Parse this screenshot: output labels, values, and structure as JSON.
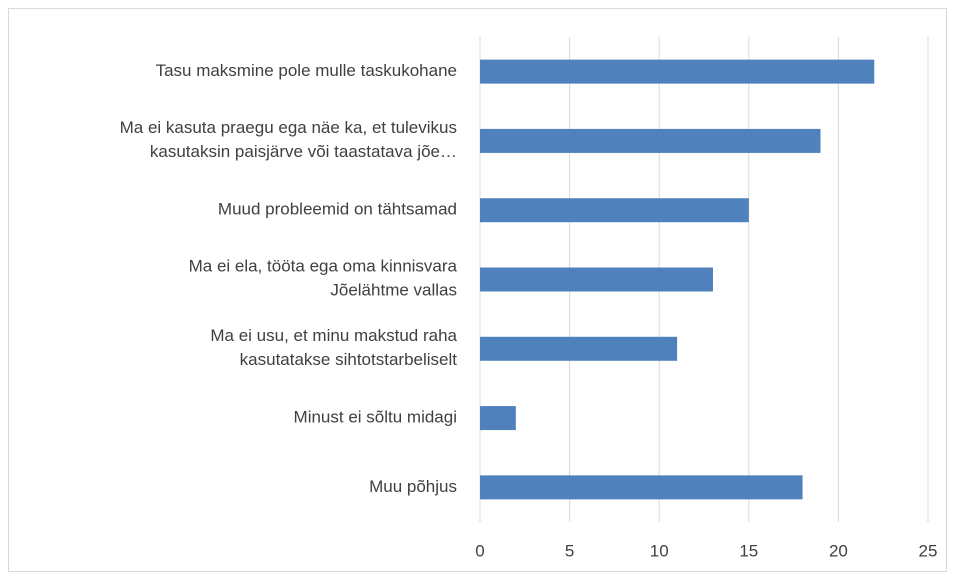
{
  "chart_data": {
    "type": "bar",
    "orientation": "horizontal",
    "categories": [
      "Tasu maksmine pole mulle taskukohane",
      "Ma ei kasuta praegu ega näe ka, et tulevikus\nkasutaksin paisjärve või taastatava jõe…",
      "Muud probleemid on tähtsamad",
      "Ma ei ela, tööta ega oma kinnisvara\nJõelähtme vallas",
      "Ma ei usu, et minu makstud raha\nkasutatakse sihtotstarbeliselt",
      "Minust ei sõltu midagi",
      "Muu põhjus"
    ],
    "values": [
      22,
      19,
      15,
      13,
      11,
      2,
      18
    ],
    "color": "#4f81bd",
    "xlim": [
      0,
      25
    ],
    "xticks": [
      0,
      5,
      10,
      15,
      20,
      25
    ],
    "grid": true
  }
}
